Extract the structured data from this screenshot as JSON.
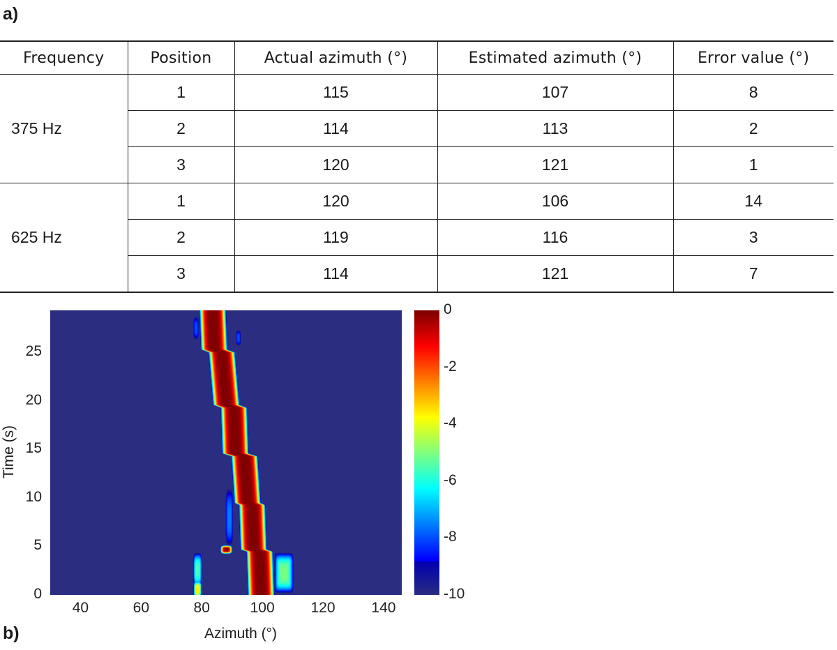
{
  "panel_a_label": "a)",
  "panel_b_label": "b)",
  "table": {
    "headers": [
      "Frequency",
      "Position",
      "Actual azimuth (°)",
      "Estimated azimuth (°)",
      "Error value (°)"
    ],
    "groups": [
      {
        "frequency": "375 Hz",
        "rows": [
          {
            "position": "1",
            "actual": "115",
            "estimated": "107",
            "error": "8"
          },
          {
            "position": "2",
            "actual": "114",
            "estimated": "113",
            "error": "2"
          },
          {
            "position": "3",
            "actual": "120",
            "estimated": "121",
            "error": "1"
          }
        ]
      },
      {
        "frequency": "625 Hz",
        "rows": [
          {
            "position": "1",
            "actual": "120",
            "estimated": "106",
            "error": "14"
          },
          {
            "position": "2",
            "actual": "119",
            "estimated": "116",
            "error": "3"
          },
          {
            "position": "3",
            "actual": "114",
            "estimated": "121",
            "error": "7"
          }
        ]
      }
    ]
  },
  "chart_data": {
    "type": "heatmap",
    "title": "",
    "xlabel": "Azimuth (°)",
    "ylabel": "Time (s)",
    "xlim": [
      30,
      146
    ],
    "ylim": [
      0,
      29.3
    ],
    "xticks": [
      "40",
      "60",
      "80",
      "100",
      "120",
      "140"
    ],
    "yticks": [
      "0",
      "5",
      "10",
      "15",
      "20",
      "25"
    ],
    "colorbar": {
      "min": -10,
      "max": 0,
      "ticks": [
        "0",
        "-2",
        "-4",
        "-6",
        "-8",
        "-10"
      ],
      "colormap": "jet"
    },
    "ridge_track": [
      [
        0,
        99.5
      ],
      [
        4.5,
        99
      ],
      [
        4.7,
        97
      ],
      [
        9.3,
        96.5
      ],
      [
        9.5,
        95
      ],
      [
        14.3,
        94
      ],
      [
        14.6,
        91
      ],
      [
        19.3,
        90.5
      ],
      [
        19.6,
        88
      ],
      [
        25,
        86.5
      ],
      [
        25.3,
        84
      ],
      [
        29.3,
        83.5
      ]
    ],
    "secondary_peaks": [
      {
        "azimuth": 88,
        "time": 4.7,
        "peak": 0
      },
      {
        "azimuth": 78.5,
        "time": 0.6,
        "peak": -3.5
      },
      {
        "azimuth": 78.5,
        "time": 2.6,
        "peak": -5.5
      },
      {
        "azimuth": 107,
        "time": 2.3,
        "peak": -5
      },
      {
        "azimuth": 89,
        "time": 8,
        "peak": -7.5
      },
      {
        "azimuth": 78,
        "time": 27.5,
        "peak": -8
      },
      {
        "azimuth": 92,
        "time": 26.5,
        "peak": -8
      }
    ]
  }
}
